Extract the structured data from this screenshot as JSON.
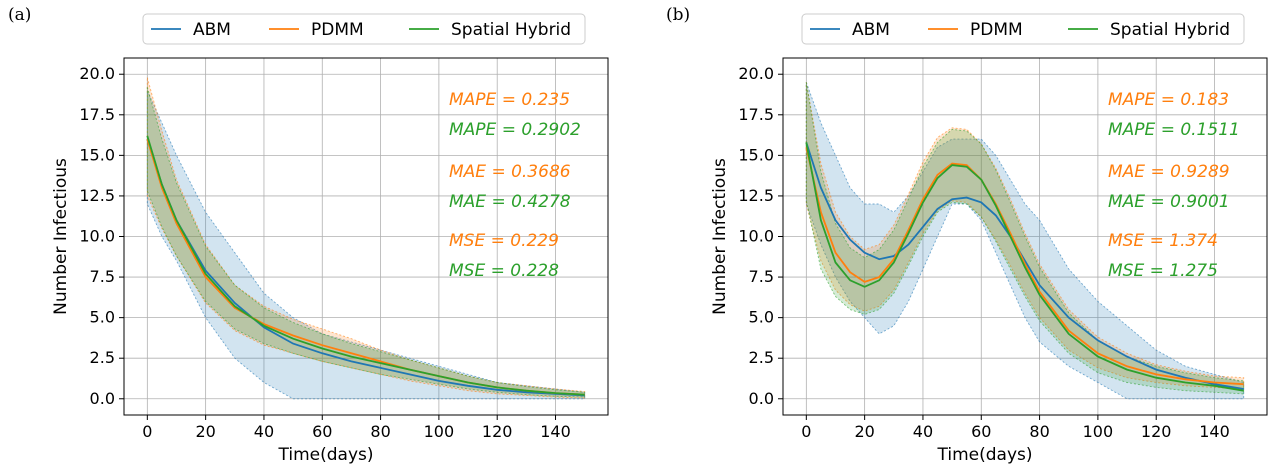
{
  "colors": {
    "ABM": "#1f77b4",
    "PDMM": "#ff7f0e",
    "Spatial Hybrid": "#2ca02c"
  },
  "chart_data": [
    {
      "panel_label": "(a)",
      "type": "line",
      "xlabel": "Time(days)",
      "ylabel": "Number Infectious",
      "xlim": [
        -8,
        158
      ],
      "ylim": [
        -1,
        21
      ],
      "xticks": [
        0,
        20,
        40,
        60,
        80,
        100,
        120,
        140
      ],
      "yticks": [
        0.0,
        2.5,
        5.0,
        7.5,
        10.0,
        12.5,
        15.0,
        17.5,
        20.0
      ],
      "ytick_labels": [
        "0.0",
        "2.5",
        "5.0",
        "7.5",
        "10.0",
        "12.5",
        "15.0",
        "17.5",
        "20.0"
      ],
      "grid": true,
      "legend": {
        "placement": "top-center (above plot)",
        "entries": [
          "ABM",
          "PDMM",
          "Spatial Hybrid"
        ]
      },
      "series": [
        {
          "name": "ABM",
          "x": [
            0,
            5,
            10,
            20,
            30,
            40,
            50,
            60,
            70,
            80,
            90,
            100,
            110,
            120,
            130,
            140,
            150
          ],
          "y": [
            16.0,
            13.2,
            11.0,
            7.9,
            5.9,
            4.4,
            3.4,
            2.8,
            2.3,
            1.9,
            1.5,
            1.1,
            0.8,
            0.55,
            0.4,
            0.3,
            0.2
          ],
          "band_low": [
            12.0,
            10.0,
            8.5,
            5.0,
            2.5,
            1.0,
            0.0,
            0.0,
            0.0,
            0.0,
            0.0,
            0.0,
            0.0,
            0.0,
            0.0,
            0.0,
            0.0
          ],
          "band_high": [
            19.0,
            17.0,
            15.0,
            11.5,
            9.0,
            6.5,
            5.0,
            4.0,
            3.5,
            3.0,
            2.5,
            2.0,
            1.5,
            1.0,
            0.8,
            0.6,
            0.4
          ]
        },
        {
          "name": "PDMM",
          "x": [
            0,
            5,
            10,
            20,
            30,
            40,
            50,
            60,
            70,
            80,
            90,
            100,
            110,
            120,
            130,
            140,
            150
          ],
          "y": [
            16.0,
            13.0,
            10.8,
            7.5,
            5.6,
            4.6,
            3.9,
            3.3,
            2.8,
            2.3,
            1.8,
            1.4,
            1.0,
            0.7,
            0.5,
            0.35,
            0.25
          ],
          "band_low": [
            12.5,
            10.5,
            8.8,
            5.9,
            4.2,
            3.3,
            2.8,
            2.3,
            1.9,
            1.5,
            1.1,
            0.8,
            0.5,
            0.3,
            0.2,
            0.1,
            0.05
          ],
          "band_high": [
            19.8,
            16.5,
            13.5,
            9.5,
            7.0,
            5.7,
            4.9,
            4.3,
            3.7,
            3.0,
            2.4,
            1.9,
            1.4,
            1.0,
            0.8,
            0.6,
            0.45
          ]
        },
        {
          "name": "Spatial Hybrid",
          "x": [
            0,
            5,
            10,
            20,
            30,
            40,
            50,
            60,
            70,
            80,
            90,
            100,
            110,
            120,
            130,
            140,
            150
          ],
          "y": [
            16.2,
            13.2,
            11.0,
            7.7,
            5.7,
            4.5,
            3.7,
            3.1,
            2.6,
            2.2,
            1.8,
            1.4,
            1.0,
            0.7,
            0.5,
            0.35,
            0.25
          ],
          "band_low": [
            12.8,
            10.6,
            8.8,
            6.0,
            4.3,
            3.4,
            2.8,
            2.3,
            1.9,
            1.5,
            1.2,
            0.9,
            0.6,
            0.4,
            0.25,
            0.15,
            0.1
          ],
          "band_high": [
            19.2,
            16.0,
            13.3,
            9.4,
            7.0,
            5.6,
            4.7,
            4.0,
            3.4,
            2.9,
            2.4,
            1.9,
            1.4,
            1.0,
            0.75,
            0.55,
            0.4
          ]
        }
      ],
      "annotations": [
        {
          "text": "MAPE = 0.235",
          "series": "PDMM"
        },
        {
          "text": "MAPE = 0.2902",
          "series": "Spatial Hybrid"
        },
        {
          "text": "MAE = 0.3686",
          "series": "PDMM"
        },
        {
          "text": "MAE = 0.4278",
          "series": "Spatial Hybrid"
        },
        {
          "text": "MSE = 0.229",
          "series": "PDMM"
        },
        {
          "text": "MSE = 0.228",
          "series": "Spatial Hybrid"
        }
      ]
    },
    {
      "panel_label": "(b)",
      "type": "line",
      "xlabel": "Time(days)",
      "ylabel": "Number Infectious",
      "xlim": [
        -8,
        158
      ],
      "ylim": [
        -1,
        21
      ],
      "xticks": [
        0,
        20,
        40,
        60,
        80,
        100,
        120,
        140
      ],
      "yticks": [
        0.0,
        2.5,
        5.0,
        7.5,
        10.0,
        12.5,
        15.0,
        17.5,
        20.0
      ],
      "ytick_labels": [
        "0.0",
        "2.5",
        "5.0",
        "7.5",
        "10.0",
        "12.5",
        "15.0",
        "17.5",
        "20.0"
      ],
      "grid": true,
      "legend": {
        "placement": "top-center (above plot)",
        "entries": [
          "ABM",
          "PDMM",
          "Spatial Hybrid"
        ]
      },
      "series": [
        {
          "name": "ABM",
          "x": [
            0,
            5,
            10,
            15,
            20,
            25,
            30,
            35,
            40,
            45,
            50,
            55,
            60,
            65,
            70,
            75,
            80,
            90,
            100,
            110,
            120,
            130,
            140,
            150
          ],
          "y": [
            15.8,
            13.0,
            11.0,
            9.8,
            9.0,
            8.6,
            8.8,
            9.5,
            10.6,
            11.7,
            12.3,
            12.4,
            12.1,
            11.3,
            10.0,
            8.5,
            7.0,
            5.0,
            3.6,
            2.6,
            1.8,
            1.3,
            0.9,
            0.6
          ],
          "band_low": [
            12.0,
            9.5,
            7.5,
            6.0,
            5.0,
            4.0,
            4.5,
            6.0,
            8.0,
            10.0,
            12.0,
            12.0,
            11.0,
            9.0,
            7.0,
            5.0,
            3.5,
            2.0,
            1.0,
            0.0,
            0.0,
            0.0,
            0.0,
            0.0
          ],
          "band_high": [
            19.5,
            17.0,
            15.0,
            13.0,
            12.0,
            12.0,
            11.5,
            12.5,
            14.0,
            15.5,
            16.0,
            16.0,
            16.0,
            15.0,
            13.5,
            12.0,
            11.0,
            8.0,
            6.0,
            4.5,
            3.0,
            2.0,
            1.5,
            1.0
          ]
        },
        {
          "name": "PDMM",
          "x": [
            0,
            5,
            10,
            15,
            20,
            25,
            30,
            35,
            40,
            45,
            50,
            55,
            60,
            65,
            70,
            75,
            80,
            90,
            100,
            110,
            120,
            130,
            140,
            150
          ],
          "y": [
            15.5,
            11.5,
            9.0,
            7.8,
            7.2,
            7.5,
            8.6,
            10.4,
            12.3,
            13.8,
            14.5,
            14.4,
            13.5,
            12.0,
            10.2,
            8.3,
            6.6,
            4.2,
            2.8,
            2.0,
            1.5,
            1.2,
            1.0,
            0.9
          ],
          "band_low": [
            12.0,
            8.5,
            6.7,
            5.8,
            5.4,
            5.7,
            6.7,
            8.4,
            10.2,
            11.6,
            12.2,
            12.1,
            11.2,
            9.8,
            8.2,
            6.5,
            5.0,
            3.0,
            1.9,
            1.3,
            1.0,
            0.8,
            0.7,
            0.6
          ],
          "band_high": [
            19.5,
            14.5,
            11.5,
            10.0,
            9.2,
            9.5,
            10.7,
            12.6,
            14.6,
            16.1,
            16.7,
            16.6,
            15.7,
            14.2,
            12.3,
            10.2,
            8.3,
            5.5,
            3.8,
            2.8,
            2.1,
            1.7,
            1.4,
            1.3
          ]
        },
        {
          "name": "Spatial Hybrid",
          "x": [
            0,
            5,
            10,
            15,
            20,
            25,
            30,
            35,
            40,
            45,
            50,
            55,
            60,
            65,
            70,
            75,
            80,
            90,
            100,
            110,
            120,
            130,
            140,
            150
          ],
          "y": [
            15.8,
            11.0,
            8.4,
            7.3,
            6.9,
            7.3,
            8.4,
            10.2,
            12.1,
            13.6,
            14.4,
            14.3,
            13.5,
            11.9,
            10.0,
            8.1,
            6.4,
            4.0,
            2.6,
            1.8,
            1.3,
            1.0,
            0.8,
            0.5
          ],
          "band_low": [
            12.2,
            8.0,
            6.3,
            5.5,
            5.2,
            5.5,
            6.5,
            8.2,
            10.0,
            11.5,
            12.1,
            12.0,
            11.2,
            9.7,
            8.0,
            6.3,
            4.8,
            2.8,
            1.6,
            1.0,
            0.7,
            0.5,
            0.4,
            0.3
          ],
          "band_high": [
            19.5,
            14.0,
            10.8,
            9.3,
            8.7,
            9.2,
            10.4,
            12.3,
            14.3,
            15.8,
            16.6,
            16.5,
            15.7,
            14.1,
            12.1,
            10.0,
            8.1,
            5.3,
            3.6,
            2.6,
            2.0,
            1.6,
            1.3,
            1.1
          ]
        }
      ],
      "annotations": [
        {
          "text": "MAPE = 0.183",
          "series": "PDMM"
        },
        {
          "text": "MAPE = 0.1511",
          "series": "Spatial Hybrid"
        },
        {
          "text": "MAE = 0.9289",
          "series": "PDMM"
        },
        {
          "text": "MAE = 0.9001",
          "series": "Spatial Hybrid"
        },
        {
          "text": "MSE = 1.374",
          "series": "PDMM"
        },
        {
          "text": "MSE = 1.275",
          "series": "Spatial Hybrid"
        }
      ]
    }
  ]
}
